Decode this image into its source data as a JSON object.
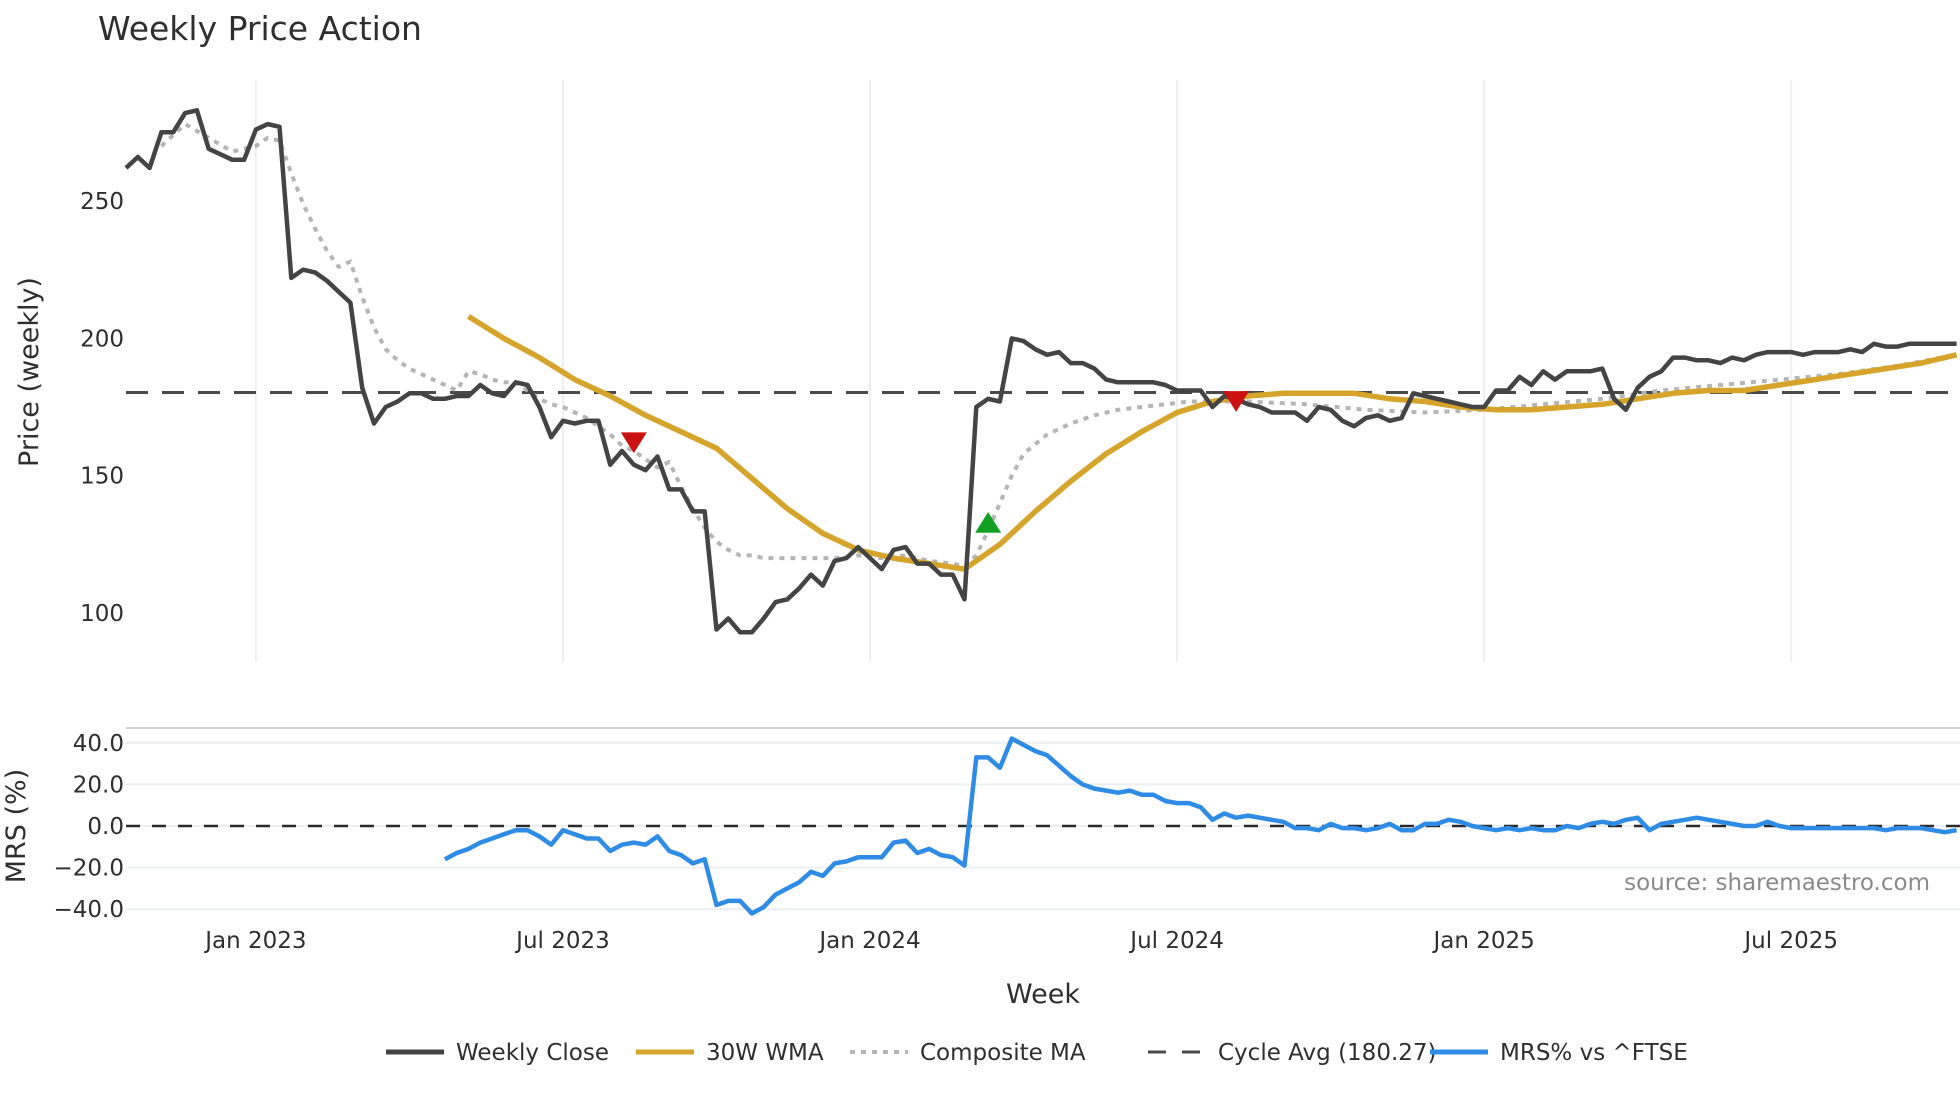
{
  "title": "Weekly Price Action",
  "source_note": "source: sharemaestro.com",
  "colors": {
    "weekly_close": "#444444",
    "wma": "#d6a42a",
    "composite": "#b5b5b5",
    "cycle_avg": "#4a4a4a",
    "mrs": "#2e8ce6",
    "sell_marker": "#cc1111",
    "buy_marker": "#11a022",
    "grid": "#eceff2"
  },
  "legend": [
    {
      "key": "weekly_close",
      "label": "Weekly Close",
      "style": "solid"
    },
    {
      "key": "wma",
      "label": "30W WMA",
      "style": "solid"
    },
    {
      "key": "composite",
      "label": "Composite MA",
      "style": "dotted"
    },
    {
      "key": "cycle_avg",
      "label": "Cycle Avg (180.27)",
      "style": "dashed"
    },
    {
      "key": "mrs",
      "label": "MRS% vs ^FTSE",
      "style": "solid"
    }
  ],
  "chart_data": [
    {
      "type": "line",
      "title": "Weekly Price Action",
      "xlabel": "Week",
      "ylabel": "Price (weekly)",
      "ylim": [
        82,
        294
      ],
      "yticks": [
        100,
        150,
        200,
        250
      ],
      "xticks": [
        "Jan 2023",
        "Jul 2023",
        "Jan 2024",
        "Jul 2024",
        "Jan 2025",
        "Jul 2025"
      ],
      "xtick_weeks": [
        11,
        37,
        63,
        89,
        115,
        141
      ],
      "grid": true,
      "legend_position": "bottom",
      "cycle_avg": 180.27,
      "series": [
        {
          "name": "Weekly Close",
          "weeks": [
            0,
            1,
            2,
            3,
            4,
            5,
            6,
            7,
            8,
            9,
            10,
            11,
            12,
            13,
            14,
            15,
            16,
            17,
            18,
            19,
            20,
            21,
            22,
            23,
            24,
            25,
            26,
            27,
            28,
            29,
            30,
            31,
            32,
            33,
            34,
            35,
            36,
            37,
            38,
            39,
            40,
            41,
            42,
            43,
            44,
            45,
            46,
            47,
            48,
            49,
            50,
            51,
            52,
            53,
            54,
            55,
            56,
            57,
            58,
            59,
            60,
            61,
            62,
            63,
            64,
            65,
            66,
            67,
            68,
            69,
            70,
            71,
            72,
            73,
            74,
            75,
            76,
            77,
            78,
            79,
            80,
            81,
            82,
            83,
            84,
            85,
            86,
            87,
            88,
            89,
            90,
            91,
            92,
            93,
            94,
            95,
            96,
            97,
            98,
            99,
            100,
            101,
            102,
            103,
            104,
            105,
            106,
            107,
            108,
            109,
            110,
            111,
            112,
            113,
            114,
            115,
            116,
            117,
            118,
            119,
            120,
            121,
            122,
            123,
            124,
            125,
            126,
            127,
            128,
            129,
            130,
            131,
            132,
            133,
            134,
            135,
            136,
            137,
            138,
            139,
            140,
            141,
            142,
            143,
            144,
            145,
            146,
            147,
            148,
            149,
            150,
            151,
            152,
            153,
            154,
            155
          ],
          "values": [
            262,
            266,
            262,
            275,
            275,
            282,
            283,
            269,
            267,
            265,
            265,
            276,
            278,
            277,
            222,
            225,
            224,
            221,
            217,
            213,
            182,
            169,
            175,
            177,
            180,
            180,
            178,
            178,
            179,
            179,
            183,
            180,
            179,
            184,
            183,
            175,
            164,
            170,
            169,
            170,
            170,
            154,
            159,
            154,
            152,
            157,
            145,
            145,
            137,
            137,
            94,
            98,
            93,
            93,
            98,
            104,
            105,
            109,
            114,
            110,
            119,
            120,
            124,
            120,
            116,
            123,
            124,
            118,
            118,
            114,
            114,
            105,
            175,
            178,
            177,
            200,
            199,
            196,
            194,
            195,
            191,
            191,
            189,
            185,
            184,
            184,
            184,
            184,
            183,
            181,
            181,
            181,
            175,
            179,
            178,
            176,
            175,
            173,
            173,
            173,
            170,
            175,
            174,
            170,
            168,
            171,
            172,
            170,
            171,
            180,
            179,
            178,
            177,
            176,
            175,
            175,
            181,
            181,
            186,
            183,
            188,
            185,
            188,
            188,
            188,
            189,
            178,
            174,
            182,
            186,
            188,
            193,
            193,
            192,
            192,
            191,
            193,
            192,
            194,
            195,
            195,
            195,
            194,
            195,
            195,
            195,
            196,
            195,
            198,
            197,
            197,
            198,
            198,
            198,
            198,
            198
          ]
        },
        {
          "name": "30W WMA",
          "weeks": [
            29,
            32,
            35,
            38,
            41,
            44,
            47,
            50,
            53,
            56,
            59,
            62,
            65,
            68,
            71,
            74,
            77,
            80,
            83,
            86,
            89,
            92,
            95,
            98,
            101,
            104,
            107,
            110,
            113,
            116,
            119,
            122,
            125,
            128,
            131,
            134,
            137,
            140,
            143,
            146,
            149,
            152,
            155
          ],
          "values": [
            208,
            200,
            193,
            185,
            179,
            172,
            166,
            160,
            149,
            138,
            129,
            123,
            120,
            118,
            116,
            125,
            137,
            148,
            158,
            166,
            173,
            177,
            179,
            180,
            180,
            180,
            178,
            177,
            175,
            174,
            174,
            175,
            176,
            178,
            180,
            181,
            181,
            183,
            185,
            187,
            189,
            191,
            194
          ]
        },
        {
          "name": "Composite MA",
          "weeks": [
            3,
            5,
            7,
            9,
            11,
            12,
            13,
            14,
            15,
            16,
            17,
            18,
            19,
            20,
            21,
            22,
            23,
            24,
            25,
            26,
            27,
            28,
            29,
            30,
            31,
            32,
            33,
            34,
            35,
            36,
            37,
            38,
            39,
            40,
            41,
            42,
            43,
            44,
            45,
            46,
            47,
            48,
            49,
            50,
            51,
            52,
            53,
            54,
            55,
            56,
            57,
            58,
            60,
            62,
            64,
            66,
            68,
            70,
            71,
            72,
            73,
            74,
            75,
            76,
            78,
            80,
            82,
            84,
            86,
            88,
            90,
            95,
            100,
            105,
            110,
            115,
            120,
            125,
            130,
            135,
            140,
            145,
            150,
            155
          ],
          "values": [
            270,
            278,
            273,
            268,
            270,
            273,
            272,
            260,
            249,
            240,
            232,
            226,
            228,
            215,
            204,
            196,
            192,
            189,
            187,
            185,
            183,
            181,
            188,
            187,
            185,
            184,
            184,
            181,
            178,
            176,
            175,
            173,
            171,
            168,
            165,
            161,
            159,
            156,
            153,
            155,
            146,
            138,
            131,
            126,
            123,
            121,
            121,
            120,
            120,
            120,
            120,
            120,
            120,
            121,
            120,
            121,
            119,
            118,
            117,
            121,
            130,
            140,
            150,
            158,
            165,
            169,
            172,
            174,
            175,
            176,
            177,
            177,
            176,
            174,
            173,
            174,
            176,
            178,
            181,
            183,
            185,
            187,
            190,
            194
          ]
        },
        {
          "name": "Signals",
          "markers": [
            {
              "type": "sell",
              "week": 43,
              "price": 162
            },
            {
              "type": "buy",
              "week": 73,
              "price": 133
            },
            {
              "type": "sell",
              "week": 94,
              "price": 177
            }
          ]
        }
      ]
    },
    {
      "type": "line",
      "title": "",
      "xlabel": "Week",
      "ylabel": "MRS (%)",
      "ylim": [
        -47,
        47
      ],
      "yticks": [
        -40.0,
        -20.0,
        0.0,
        20.0,
        40.0
      ],
      "ytick_labels": [
        "−40.0",
        "−20.0",
        "0.0",
        "20.0",
        "40.0"
      ],
      "grid": true,
      "zero_line": 0,
      "series": [
        {
          "name": "MRS% vs ^FTSE",
          "weeks": [
            27,
            28,
            29,
            30,
            31,
            32,
            33,
            34,
            35,
            36,
            37,
            38,
            39,
            40,
            41,
            42,
            43,
            44,
            45,
            46,
            47,
            48,
            49,
            50,
            51,
            52,
            53,
            54,
            55,
            56,
            57,
            58,
            59,
            60,
            61,
            62,
            63,
            64,
            65,
            66,
            67,
            68,
            69,
            70,
            71,
            72,
            73,
            74,
            75,
            76,
            77,
            78,
            79,
            80,
            81,
            82,
            83,
            84,
            85,
            86,
            87,
            88,
            89,
            90,
            91,
            92,
            93,
            94,
            95,
            96,
            97,
            98,
            99,
            100,
            101,
            102,
            103,
            104,
            105,
            106,
            107,
            108,
            109,
            110,
            111,
            112,
            113,
            114,
            115,
            116,
            117,
            118,
            119,
            120,
            121,
            122,
            123,
            124,
            125,
            126,
            127,
            128,
            129,
            130,
            131,
            132,
            133,
            134,
            135,
            136,
            137,
            138,
            139,
            140,
            141,
            142,
            143,
            144,
            145,
            146,
            147,
            148,
            149,
            150,
            151,
            152,
            153,
            154,
            155
          ],
          "values": [
            -16,
            -13,
            -11,
            -8,
            -6,
            -4,
            -2,
            -2,
            -5,
            -9,
            -2,
            -4,
            -6,
            -6,
            -12,
            -9,
            -8,
            -9,
            -5,
            -12,
            -14,
            -18,
            -16,
            -38,
            -36,
            -36,
            -42,
            -39,
            -33,
            -30,
            -27,
            -22,
            -24,
            -18,
            -17,
            -15,
            -15,
            -15,
            -8,
            -7,
            -13,
            -11,
            -14,
            -15,
            -19,
            33,
            33,
            28,
            42,
            39,
            36,
            34,
            29,
            24,
            20,
            18,
            17,
            16,
            17,
            15,
            15,
            12,
            11,
            11,
            9,
            3,
            6,
            4,
            5,
            4,
            3,
            2,
            -1,
            -1,
            -2,
            1,
            -1,
            -1,
            -2,
            -1,
            1,
            -2,
            -2,
            1,
            1,
            3,
            2,
            0,
            -1,
            -2,
            -1,
            -2,
            -1,
            -2,
            -2,
            0,
            -1,
            1,
            2,
            1,
            3,
            4,
            -2,
            1,
            2,
            3,
            4,
            3,
            2,
            1,
            0,
            0,
            2,
            0,
            -1,
            -1,
            -1,
            -1,
            -1,
            -1,
            -1,
            -1,
            -2,
            -1,
            -1,
            -1,
            -2,
            -3,
            -2
          ]
        }
      ]
    }
  ]
}
